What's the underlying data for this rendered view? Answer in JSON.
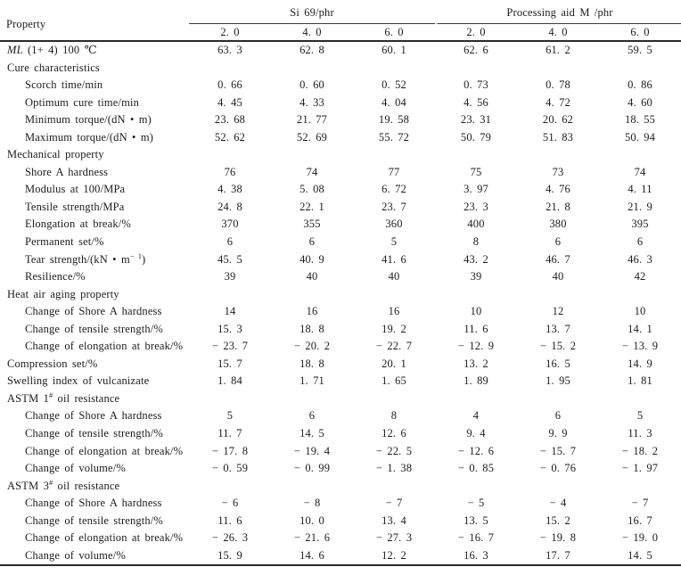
{
  "page": {
    "background": "#ffffff",
    "text_color": "#1c1c1c",
    "thin_rule_color": "#3c3c3c",
    "heavy_rule_color": "#2a2a2a"
  },
  "chart_data": {
    "type": "table"
  },
  "table": {
    "property_header": "Property",
    "groups": [
      {
        "label": "Si 69/phr",
        "subcols": [
          "2. 0",
          "4. 0",
          "6. 0"
        ]
      },
      {
        "label": "Processing aid M /phr",
        "subcols": [
          "2. 0",
          "4. 0",
          "6. 0"
        ]
      }
    ],
    "rows": [
      {
        "label": "*ML* (1+ 4) 100 ℃",
        "indent": false,
        "section": false,
        "values": [
          "63. 3",
          "62. 8",
          "60. 1",
          "62. 6",
          "61. 2",
          "59. 5"
        ]
      },
      {
        "label": "Cure characteristics",
        "indent": false,
        "section": true,
        "values": []
      },
      {
        "label": "Scorch time/min",
        "indent": true,
        "section": false,
        "values": [
          "0. 66",
          "0. 60",
          "0. 52",
          "0. 73",
          "0. 78",
          "0. 86"
        ]
      },
      {
        "label": "Optimum cure time/min",
        "indent": true,
        "section": false,
        "values": [
          "4. 45",
          "4. 33",
          "4. 04",
          "4. 56",
          "4. 72",
          "4. 60"
        ]
      },
      {
        "label": "Minimum torque/(dN • m)",
        "indent": true,
        "section": false,
        "values": [
          "23. 68",
          "21. 77",
          "19. 58",
          "23. 31",
          "20. 62",
          "18. 55"
        ]
      },
      {
        "label": "Maximum torque/(dN • m)",
        "indent": true,
        "section": false,
        "values": [
          "52. 62",
          "52. 69",
          "55. 72",
          "50. 79",
          "51. 83",
          "50. 94"
        ]
      },
      {
        "label": "Mechanical property",
        "indent": false,
        "section": true,
        "values": []
      },
      {
        "label": "Shore A hardness",
        "indent": true,
        "section": false,
        "values": [
          "76",
          "74",
          "77",
          "75",
          "73",
          "74"
        ]
      },
      {
        "label": "Modulus at 100/MPa",
        "indent": true,
        "section": false,
        "values": [
          "4. 38",
          "5. 08",
          "6. 72",
          "3. 97",
          "4. 76",
          "4. 11"
        ]
      },
      {
        "label": "Tensile strength/MPa",
        "indent": true,
        "section": false,
        "values": [
          "24. 8",
          "22. 1",
          "23. 7",
          "23. 3",
          "21. 8",
          "21. 9"
        ]
      },
      {
        "label": "Elongation at break/%",
        "indent": true,
        "section": false,
        "values": [
          "370",
          "355",
          "360",
          "400",
          "380",
          "395"
        ]
      },
      {
        "label": "Permanent set/%",
        "indent": true,
        "section": false,
        "values": [
          "6",
          "6",
          "5",
          "8",
          "6",
          "6"
        ]
      },
      {
        "label": "Tear strength/(kN • m^− 1^)",
        "indent": true,
        "section": false,
        "values": [
          "45. 5",
          "40. 9",
          "41. 6",
          "43. 2",
          "46. 7",
          "46. 3"
        ]
      },
      {
        "label": "Resilience/%",
        "indent": true,
        "section": false,
        "values": [
          "39",
          "40",
          "40",
          "39",
          "40",
          "42"
        ]
      },
      {
        "label": "Heat air aging property",
        "indent": false,
        "section": true,
        "values": []
      },
      {
        "label": "Change of Shore A hardness",
        "indent": true,
        "section": false,
        "values": [
          "14",
          "16",
          "16",
          "10",
          "12",
          "10"
        ]
      },
      {
        "label": "Change of tensile strength/%",
        "indent": true,
        "section": false,
        "values": [
          "15. 3",
          "18. 8",
          "19. 2",
          "11. 6",
          "13. 7",
          "14. 1"
        ]
      },
      {
        "label": "Change of elongation at break/%",
        "indent": true,
        "section": false,
        "values": [
          "− 23. 7",
          "− 20. 2",
          "− 22. 7",
          "− 12. 9",
          "− 15. 2",
          "− 13. 9"
        ]
      },
      {
        "label": "Compression set/%",
        "indent": false,
        "section": false,
        "values": [
          "15. 7",
          "18. 8",
          "20. 1",
          "13. 2",
          "16. 5",
          "14. 9"
        ]
      },
      {
        "label": "Swelling index of vulcanizate",
        "indent": false,
        "section": false,
        "values": [
          "1. 84",
          "1. 71",
          "1. 65",
          "1. 89",
          "1. 95",
          "1. 81"
        ]
      },
      {
        "label": "ASTM 1^#^ oil resistance",
        "indent": false,
        "section": true,
        "values": []
      },
      {
        "label": "Change of Shore A hardness",
        "indent": true,
        "section": false,
        "values": [
          "5",
          "6",
          "8",
          "4",
          "6",
          "5"
        ]
      },
      {
        "label": "Change of tensile strength/%",
        "indent": true,
        "section": false,
        "values": [
          "11. 7",
          "14. 5",
          "12. 6",
          "9. 4",
          "9. 9",
          "11. 3"
        ]
      },
      {
        "label": "Change of elongation at break/%",
        "indent": true,
        "section": false,
        "values": [
          "− 17. 8",
          "− 19. 4",
          "− 22. 5",
          "− 12. 6",
          "− 15. 7",
          "− 18. 2"
        ]
      },
      {
        "label": "Change of volume/%",
        "indent": true,
        "section": false,
        "values": [
          "− 0. 59",
          "− 0. 99",
          "− 1. 38",
          "− 0. 85",
          "− 0. 76",
          "− 1. 97"
        ]
      },
      {
        "label": "ASTM 3^#^ oil resistance",
        "indent": false,
        "section": true,
        "values": []
      },
      {
        "label": "Change of Shore A hardness",
        "indent": true,
        "section": false,
        "values": [
          "− 6",
          "− 8",
          "− 7",
          "− 5",
          "− 4",
          "− 7"
        ]
      },
      {
        "label": "Change of tensile strength/%",
        "indent": true,
        "section": false,
        "values": [
          "11. 6",
          "10. 0",
          "13. 4",
          "13. 5",
          "15. 2",
          "16. 7"
        ]
      },
      {
        "label": "Change of elongation at break/%",
        "indent": true,
        "section": false,
        "values": [
          "− 26. 3",
          "− 21. 6",
          "− 27. 3",
          "− 16. 7",
          "− 19. 8",
          "− 19. 0"
        ]
      },
      {
        "label": "Change of volume/%",
        "indent": true,
        "section": false,
        "values": [
          "15. 9",
          "14. 6",
          "12. 2",
          "16. 3",
          "17. 7",
          "14. 5"
        ]
      }
    ]
  }
}
